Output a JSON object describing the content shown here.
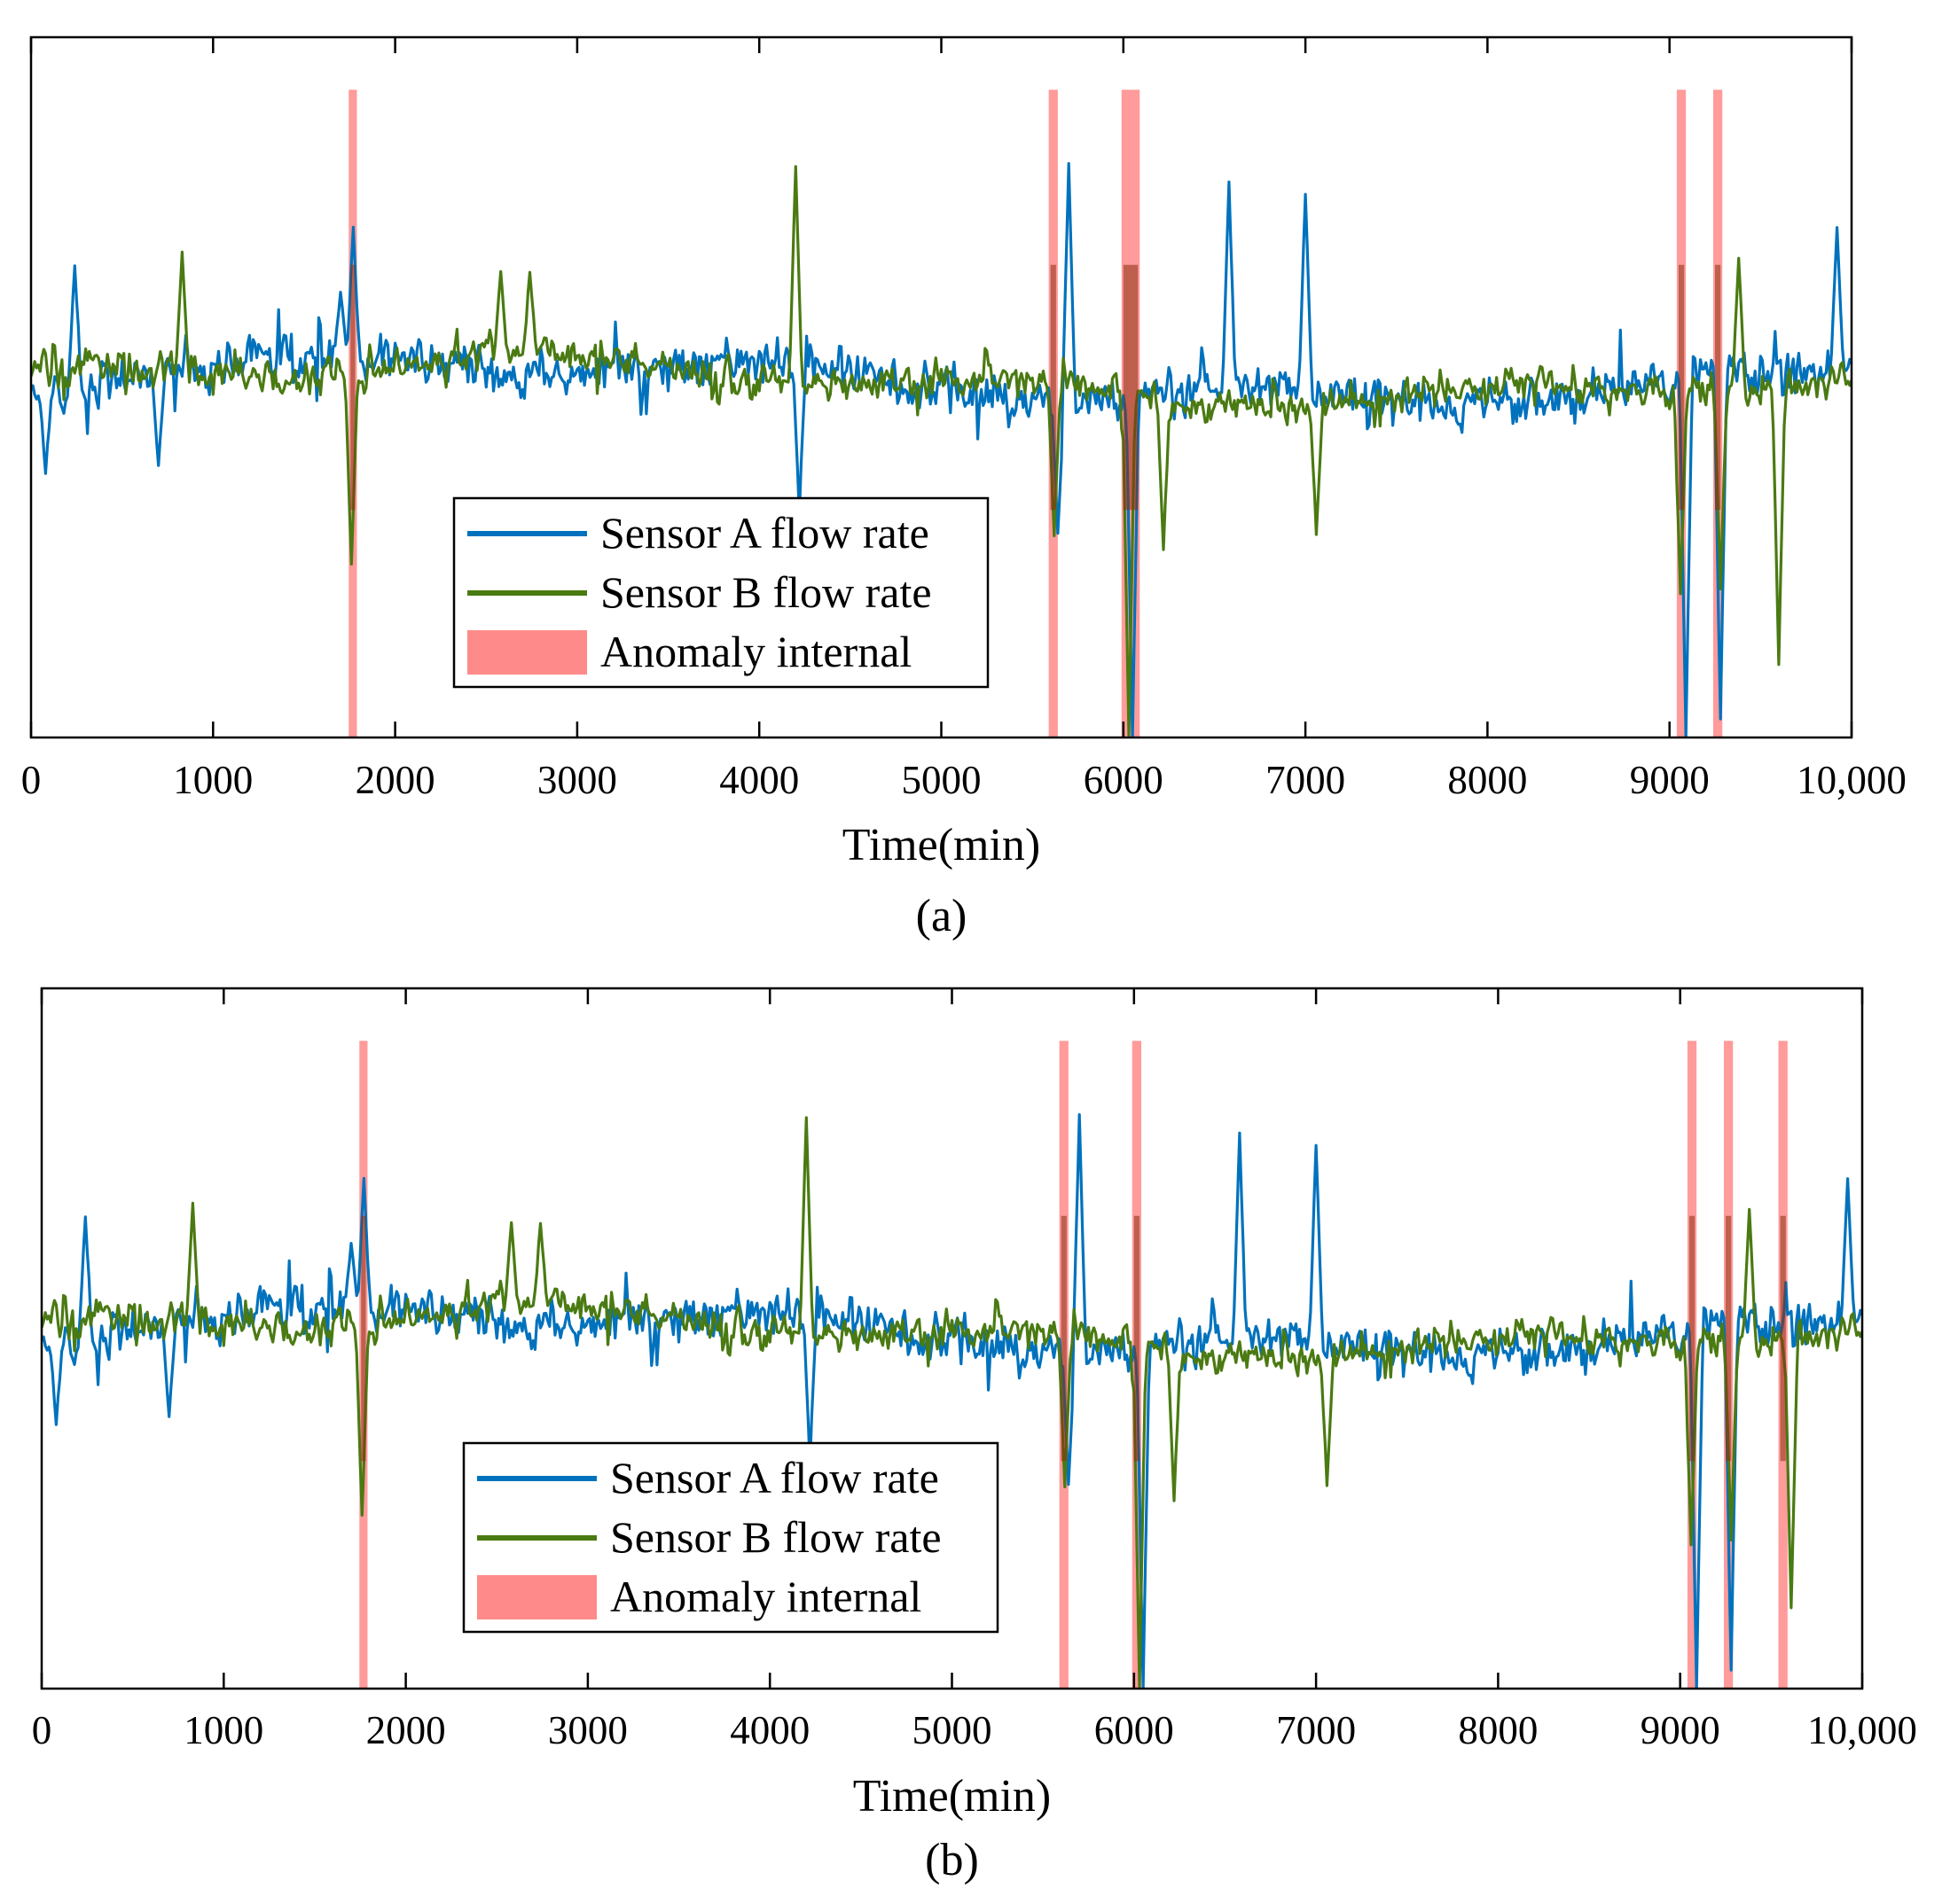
{
  "chart_data": [
    {
      "panel": "(a)",
      "type": "line",
      "caption": "(a)",
      "xlabel": "Time(min)",
      "ylabel": "",
      "xlim": [
        0,
        10000
      ],
      "ylim": [
        -1,
        1
      ],
      "x_ticks": [
        0,
        1000,
        2000,
        3000,
        4000,
        5000,
        6000,
        7000,
        8000,
        9000,
        10000
      ],
      "x_tick_labels": [
        "0",
        "1000",
        "2000",
        "3000",
        "4000",
        "5000",
        "6000",
        "7000",
        "8000",
        "9000",
        "10,000"
      ],
      "legend_position": "bottom-center",
      "legend": [
        "Sensor A flow rate",
        "Sensor B flow rate",
        "Anomaly internal"
      ],
      "anomaly_intervals": [
        [
          1745,
          1790
        ],
        [
          5590,
          5640
        ],
        [
          5990,
          6090
        ],
        [
          9040,
          9090
        ],
        [
          9240,
          9290
        ]
      ],
      "series": [
        {
          "name": "Sensor A flow rate",
          "color": "#0072BD",
          "spikes": [
            {
              "x": 80,
              "y": -0.24
            },
            {
              "x": 240,
              "y": 0.36
            },
            {
              "x": 700,
              "y": -0.23
            },
            {
              "x": 1700,
              "y": 0.28
            },
            {
              "x": 1770,
              "y": 0.45
            },
            {
              "x": 4220,
              "y": -0.35
            },
            {
              "x": 5640,
              "y": -0.42
            },
            {
              "x": 5700,
              "y": 0.64
            },
            {
              "x": 6050,
              "y": -1.0
            },
            {
              "x": 6580,
              "y": 0.58
            },
            {
              "x": 7000,
              "y": 0.56
            },
            {
              "x": 9090,
              "y": -1.0
            },
            {
              "x": 9280,
              "y": -0.95
            },
            {
              "x": 9920,
              "y": 0.46
            }
          ]
        },
        {
          "name": "Sensor B flow rate",
          "color": "#4A7A12",
          "spikes": [
            {
              "x": 830,
              "y": 0.38
            },
            {
              "x": 1760,
              "y": -0.52
            },
            {
              "x": 2580,
              "y": 0.33
            },
            {
              "x": 2740,
              "y": 0.33
            },
            {
              "x": 4200,
              "y": 0.64
            },
            {
              "x": 5620,
              "y": -0.42
            },
            {
              "x": 6030,
              "y": -1.0
            },
            {
              "x": 6220,
              "y": -0.46
            },
            {
              "x": 7060,
              "y": -0.42
            },
            {
              "x": 9060,
              "y": -0.6
            },
            {
              "x": 9280,
              "y": -0.56
            },
            {
              "x": 9380,
              "y": 0.38
            },
            {
              "x": 9600,
              "y": -0.78
            }
          ]
        }
      ]
    },
    {
      "panel": "(b)",
      "type": "line",
      "caption": "(b)",
      "xlabel": "Time(min)",
      "ylabel": "",
      "xlim": [
        0,
        10000
      ],
      "ylim": [
        -1,
        1
      ],
      "x_ticks": [
        0,
        1000,
        2000,
        3000,
        4000,
        5000,
        6000,
        7000,
        8000,
        9000,
        10000
      ],
      "x_tick_labels": [
        "0",
        "1000",
        "2000",
        "3000",
        "4000",
        "5000",
        "6000",
        "7000",
        "8000",
        "9000",
        "10,000"
      ],
      "legend_position": "bottom-center",
      "legend": [
        "Sensor A flow rate",
        "Sensor B flow rate",
        "Anomaly internal"
      ],
      "anomaly_intervals": [
        [
          1745,
          1790
        ],
        [
          5590,
          5640
        ],
        [
          5990,
          6040
        ],
        [
          9040,
          9090
        ],
        [
          9240,
          9290
        ],
        [
          9540,
          9590
        ]
      ],
      "series": [
        {
          "name": "Sensor A flow rate",
          "color": "#0072BD",
          "spikes": [
            {
              "x": 80,
              "y": -0.24
            },
            {
              "x": 240,
              "y": 0.36
            },
            {
              "x": 700,
              "y": -0.23
            },
            {
              "x": 1700,
              "y": 0.28
            },
            {
              "x": 1770,
              "y": 0.45
            },
            {
              "x": 4220,
              "y": -0.35
            },
            {
              "x": 5640,
              "y": -0.42
            },
            {
              "x": 5700,
              "y": 0.64
            },
            {
              "x": 6050,
              "y": -1.0
            },
            {
              "x": 6580,
              "y": 0.58
            },
            {
              "x": 7000,
              "y": 0.56
            },
            {
              "x": 9090,
              "y": -1.0
            },
            {
              "x": 9280,
              "y": -0.95
            },
            {
              "x": 9920,
              "y": 0.46
            }
          ]
        },
        {
          "name": "Sensor B flow rate",
          "color": "#4A7A12",
          "spikes": [
            {
              "x": 830,
              "y": 0.38
            },
            {
              "x": 1760,
              "y": -0.52
            },
            {
              "x": 2580,
              "y": 0.33
            },
            {
              "x": 2740,
              "y": 0.33
            },
            {
              "x": 4200,
              "y": 0.64
            },
            {
              "x": 5620,
              "y": -0.42
            },
            {
              "x": 6030,
              "y": -1.0
            },
            {
              "x": 6220,
              "y": -0.46
            },
            {
              "x": 7060,
              "y": -0.42
            },
            {
              "x": 9060,
              "y": -0.6
            },
            {
              "x": 9280,
              "y": -0.56
            },
            {
              "x": 9380,
              "y": 0.38
            },
            {
              "x": 9610,
              "y": -0.78
            }
          ]
        }
      ]
    }
  ],
  "colors": {
    "anomaly_fill": "#FF8A8A",
    "axis": "#000000"
  }
}
